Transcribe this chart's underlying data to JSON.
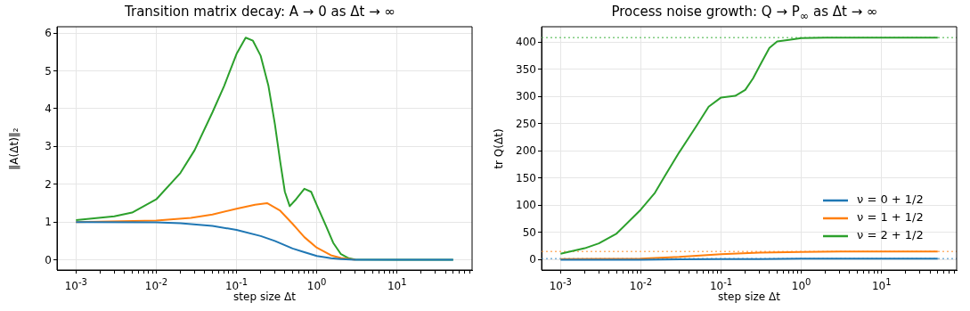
{
  "chart_data": [
    {
      "type": "line",
      "title": "Transition matrix decay: A → 0 as Δt → ∞",
      "xlabel": "step size Δt",
      "ylabel": "‖A(Δt)‖₂",
      "log": "x",
      "grid": true,
      "legend": false,
      "line_style": "solid",
      "marker": "none",
      "xlim": [
        0.00058,
        86
      ],
      "xticks": [
        {
          "value": 0.001,
          "label": "10$^{-3}$"
        },
        {
          "value": 0.002,
          "label": null
        },
        {
          "value": 0.003,
          "label": null
        },
        {
          "value": 0.004,
          "label": null
        },
        {
          "value": 0.005,
          "label": null
        },
        {
          "value": 0.006,
          "label": null
        },
        {
          "value": 0.007,
          "label": null
        },
        {
          "value": 0.008,
          "label": null
        },
        {
          "value": 0.009,
          "label": null
        },
        {
          "value": 0.01,
          "label": "10$^{-2}$"
        },
        {
          "value": 0.02,
          "label": null
        },
        {
          "value": 0.03,
          "label": null
        },
        {
          "value": 0.04,
          "label": null
        },
        {
          "value": 0.05,
          "label": null
        },
        {
          "value": 0.06,
          "label": null
        },
        {
          "value": 0.07,
          "label": null
        },
        {
          "value": 0.08,
          "label": null
        },
        {
          "value": 0.09,
          "label": null
        },
        {
          "value": 0.1,
          "label": "10$^{-1}$"
        },
        {
          "value": 0.2,
          "label": null
        },
        {
          "value": 0.3,
          "label": null
        },
        {
          "value": 0.4,
          "label": null
        },
        {
          "value": 0.5,
          "label": null
        },
        {
          "value": 0.6,
          "label": null
        },
        {
          "value": 0.7,
          "label": null
        },
        {
          "value": 0.8,
          "label": null
        },
        {
          "value": 0.9,
          "label": null
        },
        {
          "value": 1,
          "label": "10$^{0}$"
        },
        {
          "value": 2,
          "label": null
        },
        {
          "value": 3,
          "label": null
        },
        {
          "value": 4,
          "label": null
        },
        {
          "value": 5,
          "label": null
        },
        {
          "value": 6,
          "label": null
        },
        {
          "value": 7,
          "label": null
        },
        {
          "value": 8,
          "label": null
        },
        {
          "value": 9,
          "label": null
        },
        {
          "value": 10,
          "label": "10$^{1}$"
        },
        {
          "value": 20,
          "label": null
        },
        {
          "value": 30,
          "label": null
        },
        {
          "value": 40,
          "label": null
        },
        {
          "value": 50,
          "label": null
        },
        {
          "value": 60,
          "label": null
        },
        {
          "value": 70,
          "label": null
        },
        {
          "value": 80,
          "label": null
        }
      ],
      "ylim": [
        -0.27,
        6.17
      ],
      "yticks": [
        0,
        1,
        2,
        3,
        4,
        5,
        6
      ],
      "series": [
        {
          "color": "#1f77b4",
          "x": [
            0.001,
            0.01,
            0.02,
            0.05,
            0.1,
            0.2,
            0.3,
            0.5,
            0.7,
            1,
            1.5,
            2,
            3,
            10,
            50
          ],
          "values": [
            1.0,
            0.99,
            0.97,
            0.9,
            0.79,
            0.63,
            0.5,
            0.3,
            0.2,
            0.1,
            0.04,
            0.02,
            0,
            0,
            0
          ]
        },
        {
          "color": "#ff7f0e",
          "x": [
            0.001,
            0.01,
            0.027,
            0.05,
            0.1,
            0.17,
            0.24,
            0.35,
            0.5,
            0.7,
            1,
            1.5,
            2,
            3
          ],
          "values": [
            1.0,
            1.04,
            1.11,
            1.2,
            1.35,
            1.46,
            1.5,
            1.3,
            0.95,
            0.6,
            0.32,
            0.12,
            0.05,
            0
          ]
        },
        {
          "color": "#2ca02c",
          "x": [
            0.001,
            0.003,
            0.005,
            0.01,
            0.02,
            0.03,
            0.05,
            0.07,
            0.1,
            0.13,
            0.16,
            0.2,
            0.25,
            0.3,
            0.35,
            0.4,
            0.46,
            0.55,
            0.7,
            0.85,
            1,
            1.3,
            1.6,
            2,
            2.5,
            3,
            10,
            50
          ],
          "values": [
            1.05,
            1.15,
            1.25,
            1.6,
            2.3,
            2.9,
            3.9,
            4.6,
            5.45,
            5.88,
            5.8,
            5.4,
            4.6,
            3.6,
            2.6,
            1.8,
            1.42,
            1.6,
            1.88,
            1.8,
            1.45,
            0.9,
            0.45,
            0.15,
            0.04,
            0.01,
            0,
            0
          ]
        }
      ]
    },
    {
      "type": "line",
      "title": "Process noise growth: Q → P$_{∞}$ as Δt → ∞",
      "xlabel": "step size Δt",
      "ylabel": "tr Q(Δt)",
      "log": "x",
      "grid": true,
      "legend": "bottom right",
      "line_style": "solid",
      "marker": "none",
      "xlim": [
        0.00058,
        86
      ],
      "xticks": [
        {
          "value": 0.001,
          "label": "10$^{-3}$"
        },
        {
          "value": 0.002,
          "label": null
        },
        {
          "value": 0.003,
          "label": null
        },
        {
          "value": 0.004,
          "label": null
        },
        {
          "value": 0.005,
          "label": null
        },
        {
          "value": 0.006,
          "label": null
        },
        {
          "value": 0.007,
          "label": null
        },
        {
          "value": 0.008,
          "label": null
        },
        {
          "value": 0.009,
          "label": null
        },
        {
          "value": 0.01,
          "label": "10$^{-2}$"
        },
        {
          "value": 0.02,
          "label": null
        },
        {
          "value": 0.03,
          "label": null
        },
        {
          "value": 0.04,
          "label": null
        },
        {
          "value": 0.05,
          "label": null
        },
        {
          "value": 0.06,
          "label": null
        },
        {
          "value": 0.07,
          "label": null
        },
        {
          "value": 0.08,
          "label": null
        },
        {
          "value": 0.09,
          "label": null
        },
        {
          "value": 0.1,
          "label": "10$^{-1}$"
        },
        {
          "value": 0.2,
          "label": null
        },
        {
          "value": 0.3,
          "label": null
        },
        {
          "value": 0.4,
          "label": null
        },
        {
          "value": 0.5,
          "label": null
        },
        {
          "value": 0.6,
          "label": null
        },
        {
          "value": 0.7,
          "label": null
        },
        {
          "value": 0.8,
          "label": null
        },
        {
          "value": 0.9,
          "label": null
        },
        {
          "value": 1,
          "label": "10$^{0}$"
        },
        {
          "value": 2,
          "label": null
        },
        {
          "value": 3,
          "label": null
        },
        {
          "value": 4,
          "label": null
        },
        {
          "value": 5,
          "label": null
        },
        {
          "value": 6,
          "label": null
        },
        {
          "value": 7,
          "label": null
        },
        {
          "value": 8,
          "label": null
        },
        {
          "value": 9,
          "label": null
        },
        {
          "value": 10,
          "label": "10$^{1}$"
        },
        {
          "value": 20,
          "label": null
        },
        {
          "value": 30,
          "label": null
        },
        {
          "value": 40,
          "label": null
        },
        {
          "value": 50,
          "label": null
        },
        {
          "value": 60,
          "label": null
        },
        {
          "value": 70,
          "label": null
        },
        {
          "value": 80,
          "label": null
        }
      ],
      "ylim": [
        -19,
        428
      ],
      "yticks": [
        0,
        50,
        100,
        150,
        200,
        250,
        300,
        350,
        400
      ],
      "ref_lines": [
        {
          "axis": "y",
          "value": 2,
          "color": "#7fb3d9",
          "line_style": "dotted"
        },
        {
          "axis": "y",
          "value": 15,
          "color": "#ffb26e",
          "line_style": "dotted"
        },
        {
          "axis": "y",
          "value": 408,
          "color": "#7fcc7f",
          "line_style": "dotted"
        }
      ],
      "series": [
        {
          "name": "ν = 0 + 1/2",
          "color": "#1f77b4",
          "x": [
            0.001,
            0.01,
            0.1,
            0.3,
            1,
            3,
            50
          ],
          "values": [
            0,
            0,
            1,
            1,
            2,
            2,
            2
          ]
        },
        {
          "name": "ν = 1 + 1/2",
          "color": "#ff7f0e",
          "x": [
            0.001,
            0.01,
            0.03,
            0.1,
            0.3,
            1,
            3,
            50
          ],
          "values": [
            1,
            2,
            5,
            10,
            13,
            14,
            15,
            15
          ]
        },
        {
          "name": "ν = 2 + 1/2",
          "color": "#2ca02c",
          "x": [
            0.001,
            0.002,
            0.003,
            0.005,
            0.01,
            0.015,
            0.02,
            0.03,
            0.05,
            0.07,
            0.1,
            0.15,
            0.2,
            0.25,
            0.3,
            0.4,
            0.5,
            0.7,
            1,
            2,
            50
          ],
          "values": [
            11,
            21,
            30,
            48,
            92,
            123,
            154,
            197,
            247,
            281,
            298,
            301,
            312,
            333,
            355,
            389,
            401,
            404,
            407,
            408,
            408
          ]
        }
      ]
    }
  ]
}
